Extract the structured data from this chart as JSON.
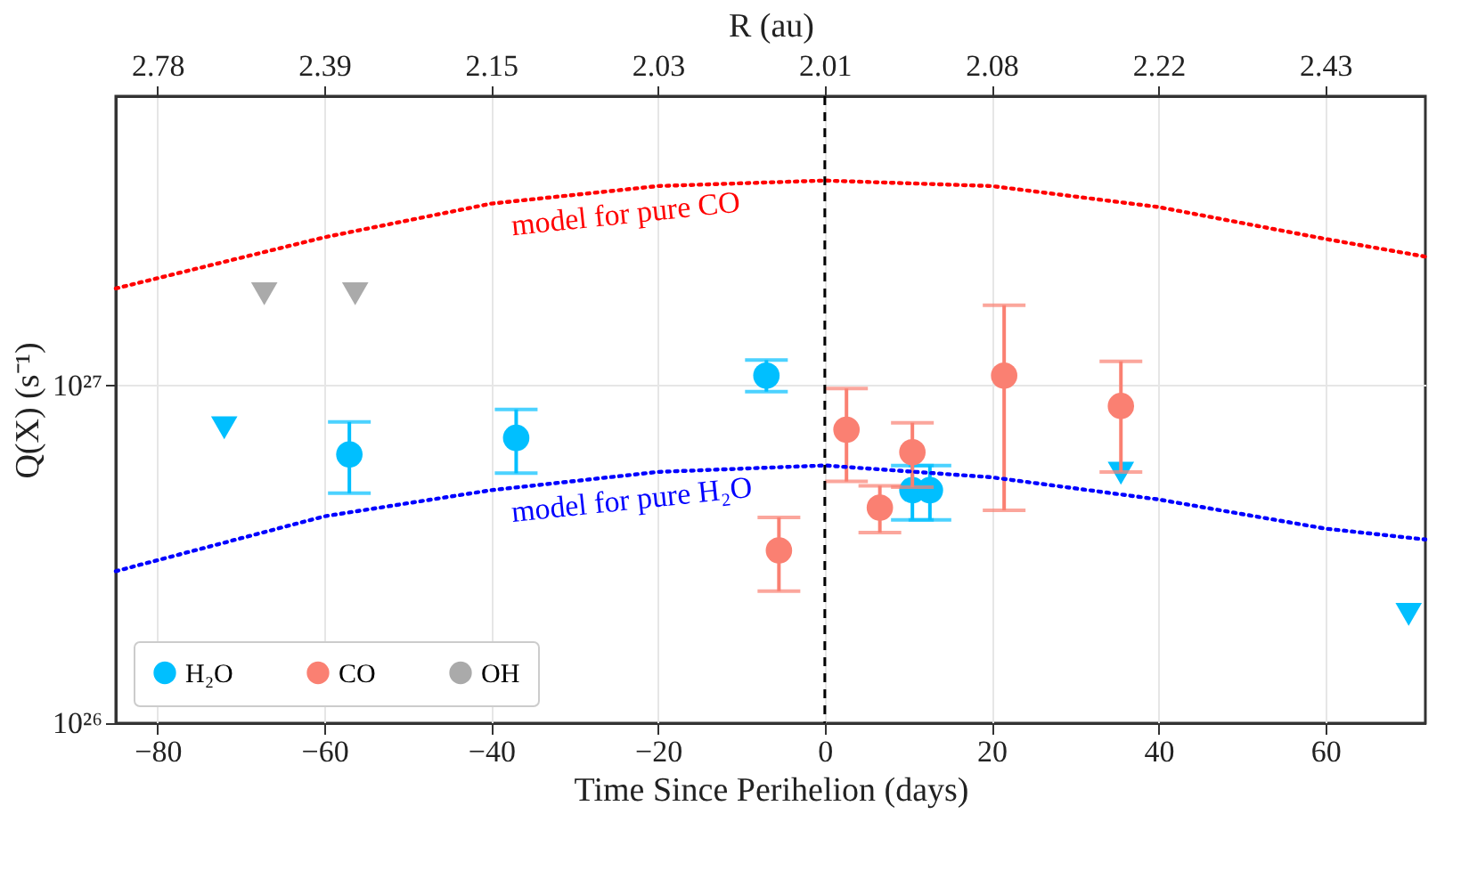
{
  "chart_data": {
    "type": "scatter",
    "xlabel": "Time Since Perihelion (days)",
    "ylabel": "Q(X) (s⁻¹)",
    "x2label": "R (au)",
    "xlim": [
      -85,
      72
    ],
    "xticks": [
      -80,
      -60,
      -40,
      -20,
      0,
      20,
      40,
      60
    ],
    "ylim": [
      1e+26,
      7.2e+27
    ],
    "yticks": [
      {
        "value": 1e+26,
        "label": "10²⁶"
      },
      {
        "value": 1e+27,
        "label": "10²⁷"
      }
    ],
    "log": "y",
    "grid": true,
    "legend": "bottom left",
    "series": [
      {
        "name": "H₂O",
        "marker": "circle",
        "color": "#00bfff",
        "x": [
          -57,
          -37,
          -7,
          10.5,
          12.6
        ],
        "values": [
          6.25e+26,
          7e+26,
          1.07e+27,
          4.9e+26,
          4.9e+26
        ],
        "errors": [
          [
            4.8e+26,
            7.8e+26
          ],
          [
            5.5e+26,
            8.5e+26
          ],
          [
            9.6e+26,
            1.19e+27
          ],
          [
            4e+26,
            5.8e+26
          ],
          [
            4e+26,
            5.8e+26
          ]
        ]
      },
      {
        "marker": "triangle",
        "color": "#00bfff",
        "x": [
          -72,
          35.5,
          70
        ],
        "values": [
          7.5e+26,
          5.5e+26,
          2.1e+26
        ]
      },
      {
        "name": "CO",
        "marker": "circle",
        "color": "#fa8072",
        "x": [
          -5.5,
          2.6,
          6.6,
          10.5,
          21.5,
          35.5
        ],
        "values": [
          3.25e+26,
          7.4e+26,
          4.35e+26,
          6.35e+26,
          1.07e+27,
          8.7e+26
        ],
        "errors": [
          [
            2.46e+26,
            4.07e+26
          ],
          [
            5.2e+26,
            9.8e+26
          ],
          [
            3.67e+26,
            5.05e+26
          ],
          [
            5e+26,
            7.76e+26
          ],
          [
            4.27e+26,
            1.73e+27
          ],
          [
            5.55e+26,
            1.18e+27
          ]
        ]
      },
      {
        "name": "OH",
        "marker": "triangle",
        "color": "#aaaaaa",
        "x": [
          -67.2,
          -56.3
        ],
        "values": [
          1.87e+27,
          1.87e+27
        ]
      },
      {
        "type": "line",
        "line_style": "dotted",
        "color": "#ff0000",
        "x": [
          -85,
          -60,
          -40,
          -20,
          0,
          20,
          40,
          60,
          72
        ],
        "values": [
          1.94e+27,
          2.75e+27,
          3.46e+27,
          3.9e+27,
          4.05e+27,
          3.9e+27,
          3.38e+27,
          2.72e+27,
          2.41e+27
        ]
      },
      {
        "type": "line",
        "line_style": "dotted",
        "color": "#0000ff",
        "x": [
          -85,
          -60,
          -40,
          -20,
          0,
          20,
          40,
          60,
          72
        ],
        "values": [
          2.82e+26,
          4.1e+26,
          4.9e+26,
          5.55e+26,
          5.8e+26,
          5.35e+26,
          4.6e+26,
          3.77e+26,
          3.5e+26
        ]
      }
    ],
    "ref_lines": [
      {
        "axis": "x",
        "value": 0,
        "color": "#000000",
        "line_style": "dashed"
      }
    ],
    "annotations": [
      "model for pure CO",
      "model for pure H₂O",
      "2.78",
      "2.39",
      "2.15",
      "2.03",
      "2.01",
      "2.08",
      "2.22",
      "2.43"
    ]
  }
}
